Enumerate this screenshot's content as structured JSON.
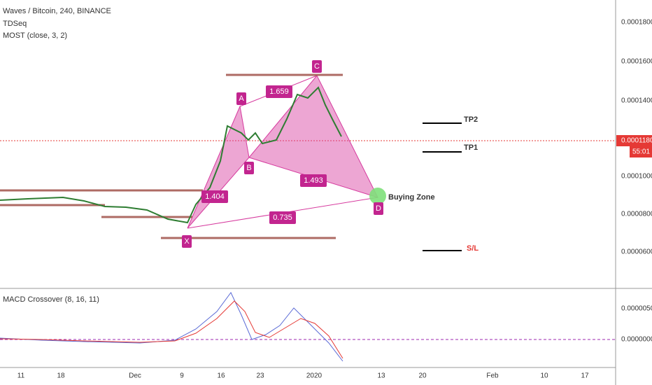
{
  "header": {
    "symbol": "Waves / Bitcoin, 240, BINANCE",
    "indicators": [
      "TDSeq",
      "MOST (close, 3, 2)"
    ]
  },
  "price_axis": {
    "labels": [
      "0.0001800",
      "0.0001600",
      "0.0001400",
      "0.0001000",
      "0.0000800",
      "0.0000600"
    ],
    "last_price": "0.0001180",
    "countdown": "55:01"
  },
  "pattern": {
    "points": [
      "X",
      "A",
      "B",
      "C",
      "D"
    ],
    "ratios": [
      "1.659",
      "1.404",
      "1.493",
      "0.735"
    ]
  },
  "annotations": {
    "buying_zone": "Buying Zone",
    "tp2": "TP2",
    "tp1": "TP1",
    "stop_loss": "S/L"
  },
  "macd": {
    "title": "MACD Crossover (8, 16, 11)",
    "axis_labels": [
      "0.0000050",
      "0.0000000"
    ]
  },
  "time_axis": {
    "labels": [
      "11",
      "18",
      "Dec",
      "9",
      "16",
      "23",
      "2020",
      "13",
      "20",
      "Feb",
      "10",
      "17"
    ]
  }
}
